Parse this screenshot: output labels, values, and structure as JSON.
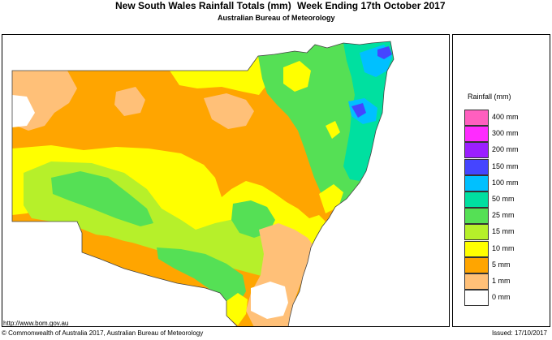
{
  "header": {
    "title": "New South Wales Rainfall Totals (mm)",
    "period": "Week Ending 17th October 2017",
    "subtitle": "Australian Bureau of Meteorology"
  },
  "legend": {
    "title": "Rainfall (mm)",
    "items": [
      {
        "label": "400 mm",
        "color": "#ff5fbf"
      },
      {
        "label": "300 mm",
        "color": "#ff2bff"
      },
      {
        "label": "200 mm",
        "color": "#9b1fff"
      },
      {
        "label": "150 mm",
        "color": "#4545ff"
      },
      {
        "label": "100 mm",
        "color": "#00c0ff"
      },
      {
        "label": "50 mm",
        "color": "#00e0a0"
      },
      {
        "label": "25 mm",
        "color": "#55e055"
      },
      {
        "label": "15 mm",
        "color": "#b6f02a"
      },
      {
        "label": "10 mm",
        "color": "#ffff00"
      },
      {
        "label": "5 mm",
        "color": "#ffa500"
      },
      {
        "label": "1 mm",
        "color": "#ffc078"
      },
      {
        "label": "0 mm",
        "color": "#ffffff"
      }
    ]
  },
  "map": {
    "colors": {
      "r0": "#ffffff",
      "r1": "#ffc078",
      "r5": "#ffa500",
      "r10": "#ffff00",
      "r15": "#b6f02a",
      "r25": "#55e055",
      "r50": "#00e0a0",
      "r100": "#00c0ff",
      "r150": "#4545ff",
      "r200": "#9b1fff"
    }
  },
  "footer": {
    "url": "http://www.bom.gov.au",
    "copyright": "© Commonwealth of Australia 2017, Australian Bureau of Meteorology",
    "issued": "Issued: 17/10/2017"
  }
}
